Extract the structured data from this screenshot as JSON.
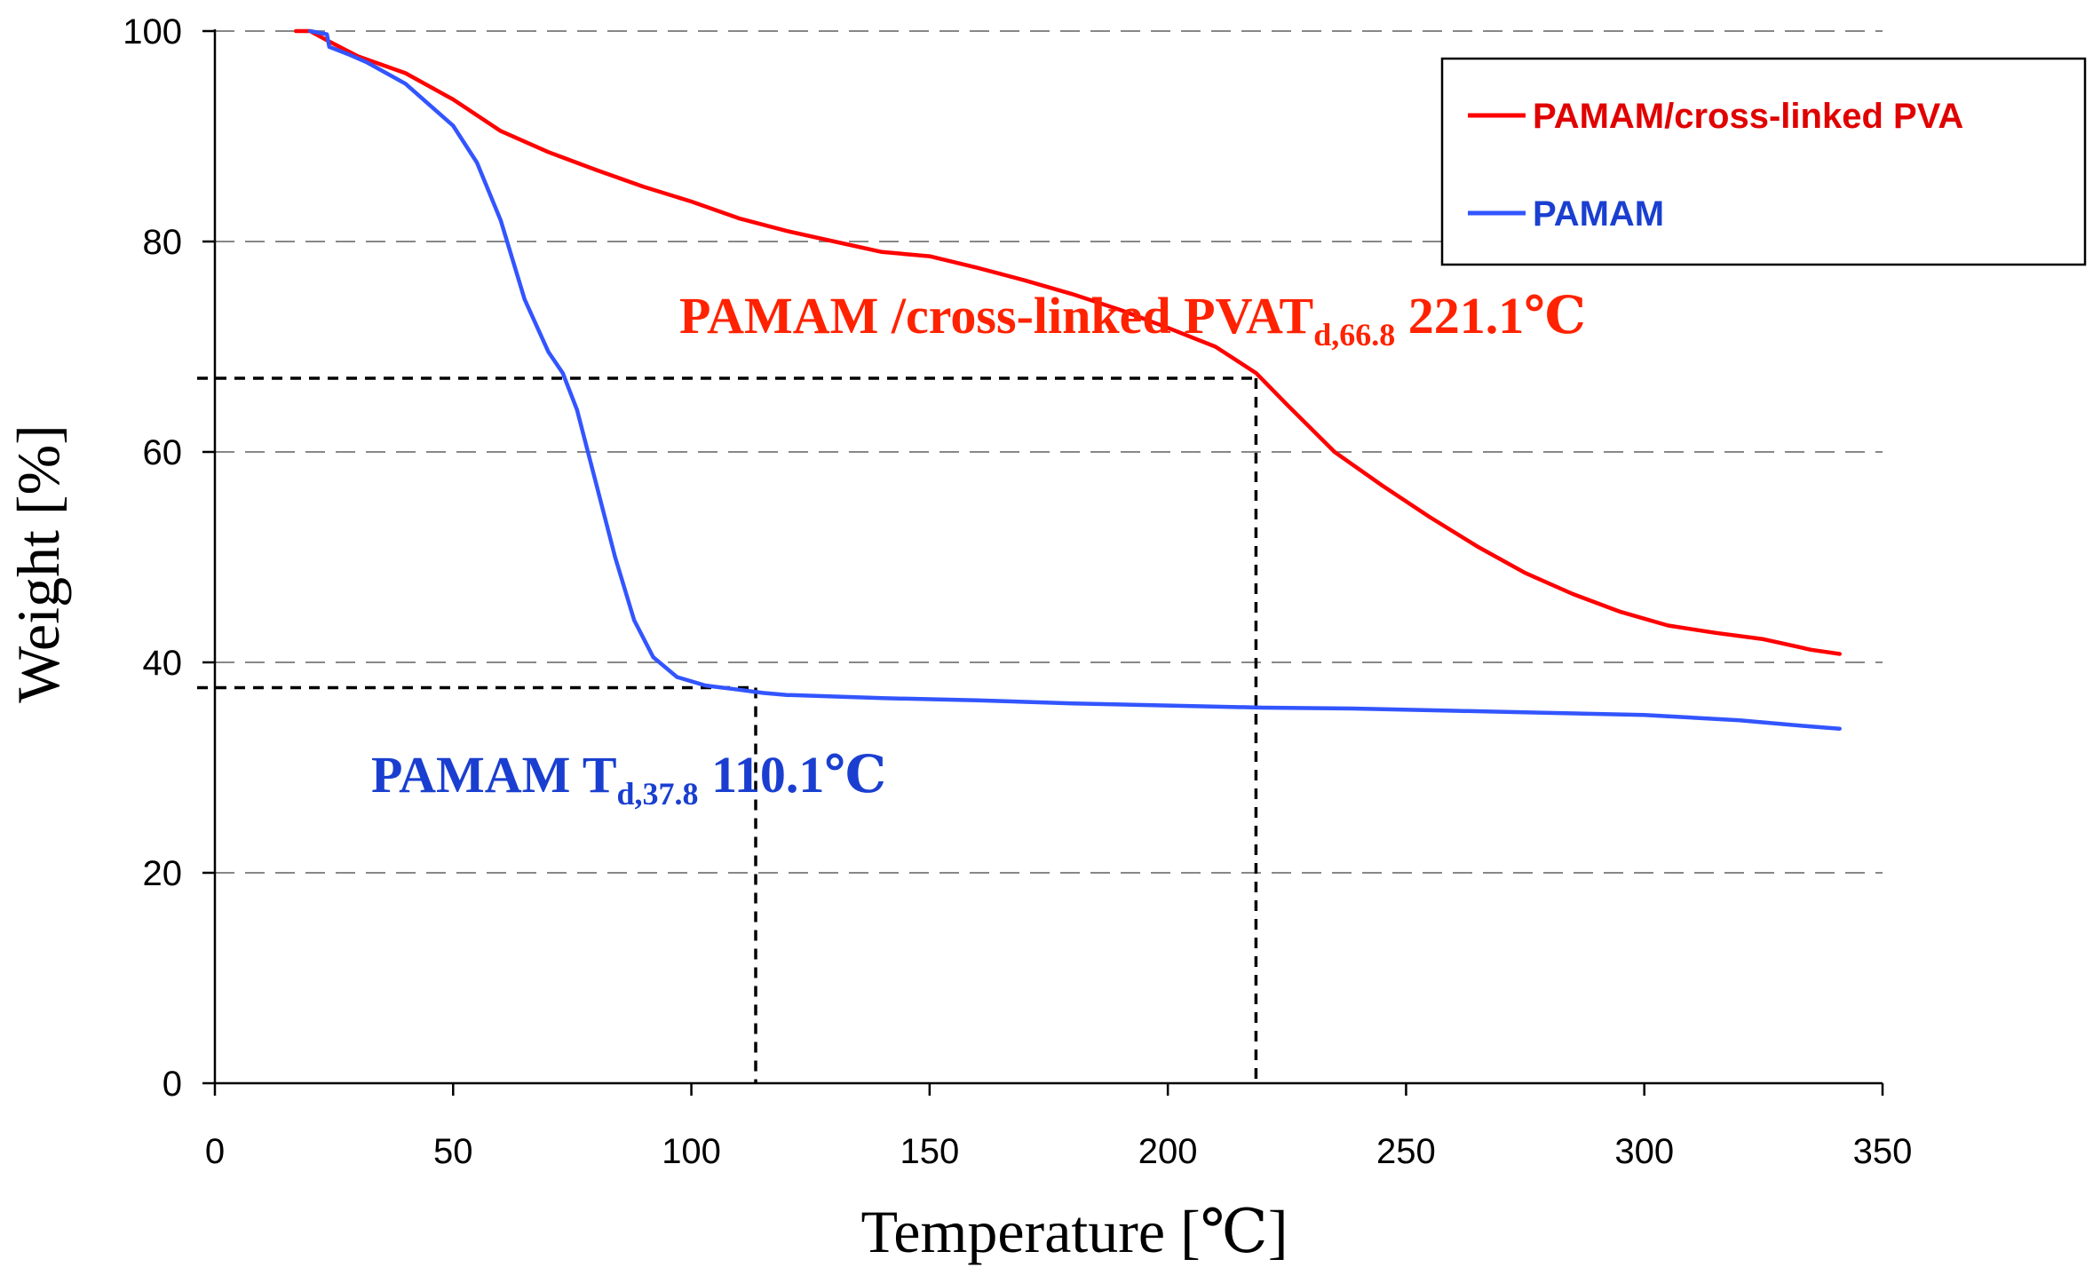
{
  "chart_data": {
    "type": "line",
    "title": "",
    "xlabel": "Temperature [℃]",
    "ylabel": "Weight [%]",
    "xlim": [
      0,
      350
    ],
    "ylim": [
      0,
      100
    ],
    "xticks": [
      0,
      50,
      100,
      150,
      200,
      250,
      300,
      350
    ],
    "yticks": [
      0,
      20,
      40,
      60,
      80,
      100
    ],
    "grid": "horizontal dashed",
    "legend_position": "top-right",
    "colors": {
      "red": "#ff0000",
      "blue": "#3355ff",
      "red_annotation": "#ff2200",
      "blue_annotation": "#1a3fd0"
    },
    "series": [
      {
        "name": "PAMAM/cross-linked PVA",
        "color": "#ff0000",
        "points": [
          [
            17,
            100
          ],
          [
            20,
            100
          ],
          [
            24,
            99
          ],
          [
            30,
            97.6
          ],
          [
            40,
            96
          ],
          [
            50,
            93.5
          ],
          [
            60,
            90.5
          ],
          [
            70,
            88.5
          ],
          [
            80,
            86.8
          ],
          [
            90,
            85.2
          ],
          [
            100,
            83.8
          ],
          [
            110,
            82.2
          ],
          [
            120,
            81
          ],
          [
            130,
            80
          ],
          [
            140,
            79
          ],
          [
            150,
            78.6
          ],
          [
            160,
            77.5
          ],
          [
            170,
            76.3
          ],
          [
            180,
            75
          ],
          [
            190,
            73.5
          ],
          [
            200,
            71.8
          ],
          [
            210,
            70
          ],
          [
            218.5,
            67.5
          ],
          [
            225,
            64.5
          ],
          [
            235,
            60
          ],
          [
            245,
            56.8
          ],
          [
            255,
            53.8
          ],
          [
            265,
            51
          ],
          [
            275,
            48.5
          ],
          [
            285,
            46.5
          ],
          [
            295,
            44.8
          ],
          [
            305,
            43.5
          ],
          [
            315,
            42.8
          ],
          [
            325,
            42.2
          ],
          [
            335,
            41.2
          ],
          [
            341,
            40.8
          ]
        ]
      },
      {
        "name": "PAMAM",
        "color": "#3355ff",
        "points": [
          [
            20,
            100
          ],
          [
            23.5,
            99.7
          ],
          [
            24,
            98.5
          ],
          [
            28,
            97.8
          ],
          [
            32,
            97
          ],
          [
            40,
            95
          ],
          [
            50,
            91
          ],
          [
            55,
            87.5
          ],
          [
            60,
            82
          ],
          [
            65,
            74.5
          ],
          [
            70,
            69.5
          ],
          [
            73,
            67.5
          ],
          [
            76,
            64
          ],
          [
            80,
            57
          ],
          [
            84,
            50
          ],
          [
            88,
            44
          ],
          [
            92,
            40.5
          ],
          [
            97,
            38.6
          ],
          [
            103,
            37.8
          ],
          [
            110,
            37.4
          ],
          [
            115,
            37.1
          ],
          [
            120,
            36.9
          ],
          [
            140,
            36.6
          ],
          [
            160,
            36.4
          ],
          [
            180,
            36.1
          ],
          [
            200,
            35.9
          ],
          [
            220,
            35.7
          ],
          [
            240,
            35.6
          ],
          [
            260,
            35.4
          ],
          [
            280,
            35.2
          ],
          [
            300,
            35
          ],
          [
            320,
            34.5
          ],
          [
            335,
            33.9
          ],
          [
            341,
            33.7
          ]
        ]
      }
    ],
    "guides": [
      {
        "x": 218.5,
        "y": 67
      },
      {
        "x": 113.5,
        "y": 37.6
      }
    ],
    "annotations": [
      {
        "text": "PAMAM /cross-linked PVAT",
        "sub": "d,66.8",
        "tail": " 221.1℃",
        "color": "#ff2200"
      },
      {
        "text": "PAMAM T",
        "sub": "d,37.8",
        "tail": " 110.1℃",
        "color": "#1a3fd0"
      }
    ]
  }
}
